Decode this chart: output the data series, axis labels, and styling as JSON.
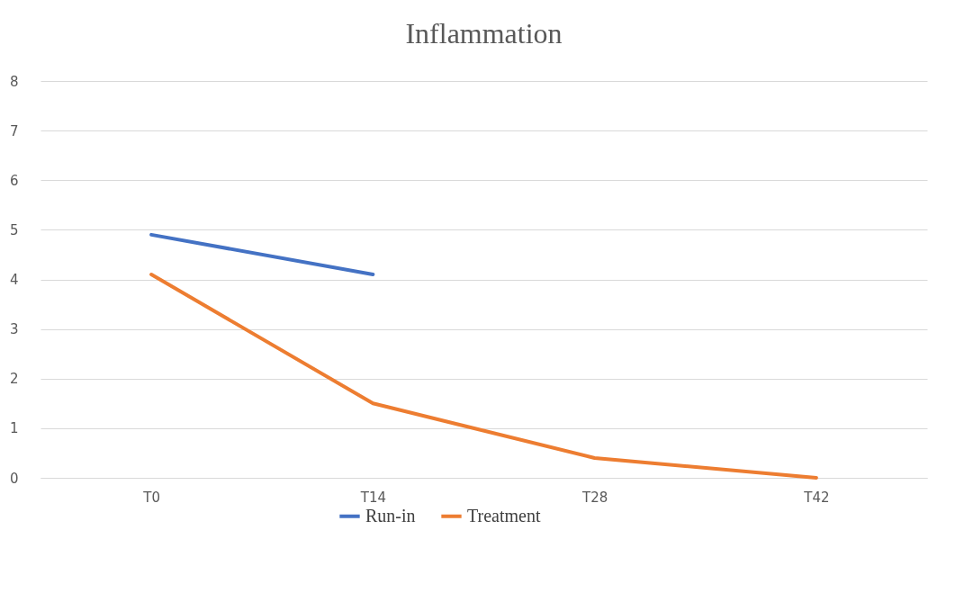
{
  "chart_data": {
    "type": "line",
    "title": "Inflammation",
    "categories": [
      "T0",
      "T14",
      "T28",
      "T42"
    ],
    "series": [
      {
        "name": "Run-in",
        "color": "#4472c4",
        "values": [
          4.9,
          4.1,
          null,
          null
        ]
      },
      {
        "name": "Treatment",
        "color": "#ed7d31",
        "values": [
          4.1,
          1.5,
          0.4,
          0.0
        ]
      }
    ],
    "ylim": [
      0,
      8
    ],
    "yticks": [
      0,
      1,
      2,
      3,
      4,
      5,
      6,
      7,
      8
    ],
    "grid": "y",
    "legend": "bottom",
    "marker": "none",
    "line_style": "solid"
  }
}
